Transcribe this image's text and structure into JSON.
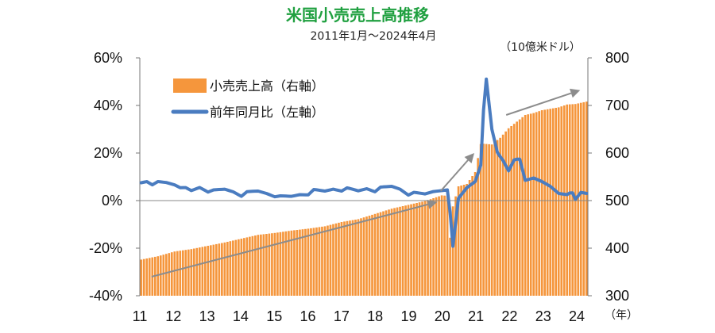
{
  "chart_data": {
    "type": "bar+line",
    "title": "米国小売売上高推移",
    "subtitle": "2011年1月～2024年4月",
    "title_color": "#20a040",
    "y_left": {
      "min": -40,
      "max": 60,
      "ticks": [
        "-40%",
        "-20%",
        "0%",
        "20%",
        "40%",
        "60%"
      ],
      "values": [
        -40,
        -20,
        0,
        20,
        40,
        60
      ]
    },
    "y_right": {
      "min": 300,
      "max": 800,
      "ticks": [
        "300",
        "400",
        "500",
        "600",
        "700",
        "800"
      ],
      "values": [
        300,
        400,
        500,
        600,
        700,
        800
      ],
      "unit": "（10億米ドル）"
    },
    "x_ticks": [
      "11",
      "12",
      "13",
      "14",
      "15",
      "16",
      "17",
      "18",
      "19",
      "20",
      "21",
      "22",
      "23",
      "24"
    ],
    "x_unit": "（年）",
    "x_start": 2011.0,
    "x_end": 2024.33,
    "bar_color": "#f5963c",
    "line_color": "#4a7cc0",
    "arrow_color": "#8c8c8c",
    "series": [
      {
        "name": "小売売上高（右軸）",
        "axis": "right",
        "kind": "bar",
        "anchors": [
          [
            2011.0,
            376
          ],
          [
            2011.5,
            383
          ],
          [
            2012.0,
            393
          ],
          [
            2012.5,
            398
          ],
          [
            2013.0,
            405
          ],
          [
            2013.5,
            412
          ],
          [
            2014.0,
            420
          ],
          [
            2014.5,
            428
          ],
          [
            2015.0,
            432
          ],
          [
            2015.5,
            437
          ],
          [
            2016.0,
            441
          ],
          [
            2016.5,
            446
          ],
          [
            2017.0,
            455
          ],
          [
            2017.5,
            461
          ],
          [
            2018.0,
            472
          ],
          [
            2018.5,
            483
          ],
          [
            2019.0,
            491
          ],
          [
            2019.5,
            499
          ],
          [
            2020.0,
            511
          ],
          [
            2020.17,
            510
          ],
          [
            2020.25,
            422
          ],
          [
            2020.33,
            487
          ],
          [
            2020.5,
            530
          ],
          [
            2020.75,
            535
          ],
          [
            2021.0,
            560
          ],
          [
            2021.17,
            620
          ],
          [
            2021.5,
            618
          ],
          [
            2021.75,
            632
          ],
          [
            2022.0,
            652
          ],
          [
            2022.5,
            680
          ],
          [
            2022.75,
            684
          ],
          [
            2023.0,
            690
          ],
          [
            2023.5,
            696
          ],
          [
            2023.75,
            702
          ],
          [
            2024.0,
            703
          ],
          [
            2024.33,
            708
          ]
        ]
      },
      {
        "name": "前年同月比（左軸）",
        "axis": "left",
        "kind": "line",
        "anchors": [
          [
            2011.0,
            7.5
          ],
          [
            2011.17,
            8
          ],
          [
            2011.33,
            6.6
          ],
          [
            2011.5,
            8
          ],
          [
            2011.75,
            7.6
          ],
          [
            2012.0,
            6.6
          ],
          [
            2012.17,
            5.4
          ],
          [
            2012.33,
            5.5
          ],
          [
            2012.5,
            4.2
          ],
          [
            2012.75,
            5.5
          ],
          [
            2013.0,
            3.6
          ],
          [
            2013.17,
            4.5
          ],
          [
            2013.5,
            4.8
          ],
          [
            2013.75,
            3.7
          ],
          [
            2014.0,
            1.8
          ],
          [
            2014.17,
            3.8
          ],
          [
            2014.5,
            4.0
          ],
          [
            2014.75,
            3.0
          ],
          [
            2015.0,
            1.6
          ],
          [
            2015.17,
            2.0
          ],
          [
            2015.5,
            1.8
          ],
          [
            2015.75,
            2.5
          ],
          [
            2016.0,
            2.4
          ],
          [
            2016.17,
            4.7
          ],
          [
            2016.5,
            4.0
          ],
          [
            2016.75,
            4.8
          ],
          [
            2017.0,
            4.0
          ],
          [
            2017.17,
            5.4
          ],
          [
            2017.5,
            4.1
          ],
          [
            2017.75,
            5.0
          ],
          [
            2018.0,
            3.7
          ],
          [
            2018.17,
            5.7
          ],
          [
            2018.5,
            6.0
          ],
          [
            2018.75,
            4.8
          ],
          [
            2019.0,
            2.3
          ],
          [
            2019.17,
            3.5
          ],
          [
            2019.5,
            2.8
          ],
          [
            2019.75,
            3.8
          ],
          [
            2020.0,
            4.2
          ],
          [
            2020.17,
            4.5
          ],
          [
            2020.25,
            -5
          ],
          [
            2020.33,
            -19.6
          ],
          [
            2020.5,
            1.0
          ],
          [
            2020.75,
            5.4
          ],
          [
            2021.0,
            8.0
          ],
          [
            2021.17,
            15
          ],
          [
            2021.25,
            38
          ],
          [
            2021.33,
            51.5
          ],
          [
            2021.5,
            30
          ],
          [
            2021.67,
            20
          ],
          [
            2021.83,
            17
          ],
          [
            2022.0,
            12.5
          ],
          [
            2022.17,
            17.2
          ],
          [
            2022.33,
            17.6
          ],
          [
            2022.5,
            8.5
          ],
          [
            2022.75,
            9.5
          ],
          [
            2023.0,
            8.0
          ],
          [
            2023.25,
            6.0
          ],
          [
            2023.5,
            3.0
          ],
          [
            2023.75,
            2.5
          ],
          [
            2023.9,
            3.8
          ],
          [
            2024.0,
            0.5
          ],
          [
            2024.17,
            3.5
          ],
          [
            2024.33,
            3.0
          ]
        ]
      }
    ],
    "annotations": [
      {
        "type": "arrow",
        "from": [
          2011.35,
          340
        ],
        "to": [
          2019.85,
          497
        ],
        "axis": "right"
      },
      {
        "type": "arrow",
        "from": [
          2019.95,
          520
        ],
        "to": [
          2020.95,
          600
        ],
        "axis": "right"
      },
      {
        "type": "arrow",
        "from": [
          2021.9,
          680
        ],
        "to": [
          2024.1,
          732
        ],
        "axis": "right"
      }
    ]
  }
}
